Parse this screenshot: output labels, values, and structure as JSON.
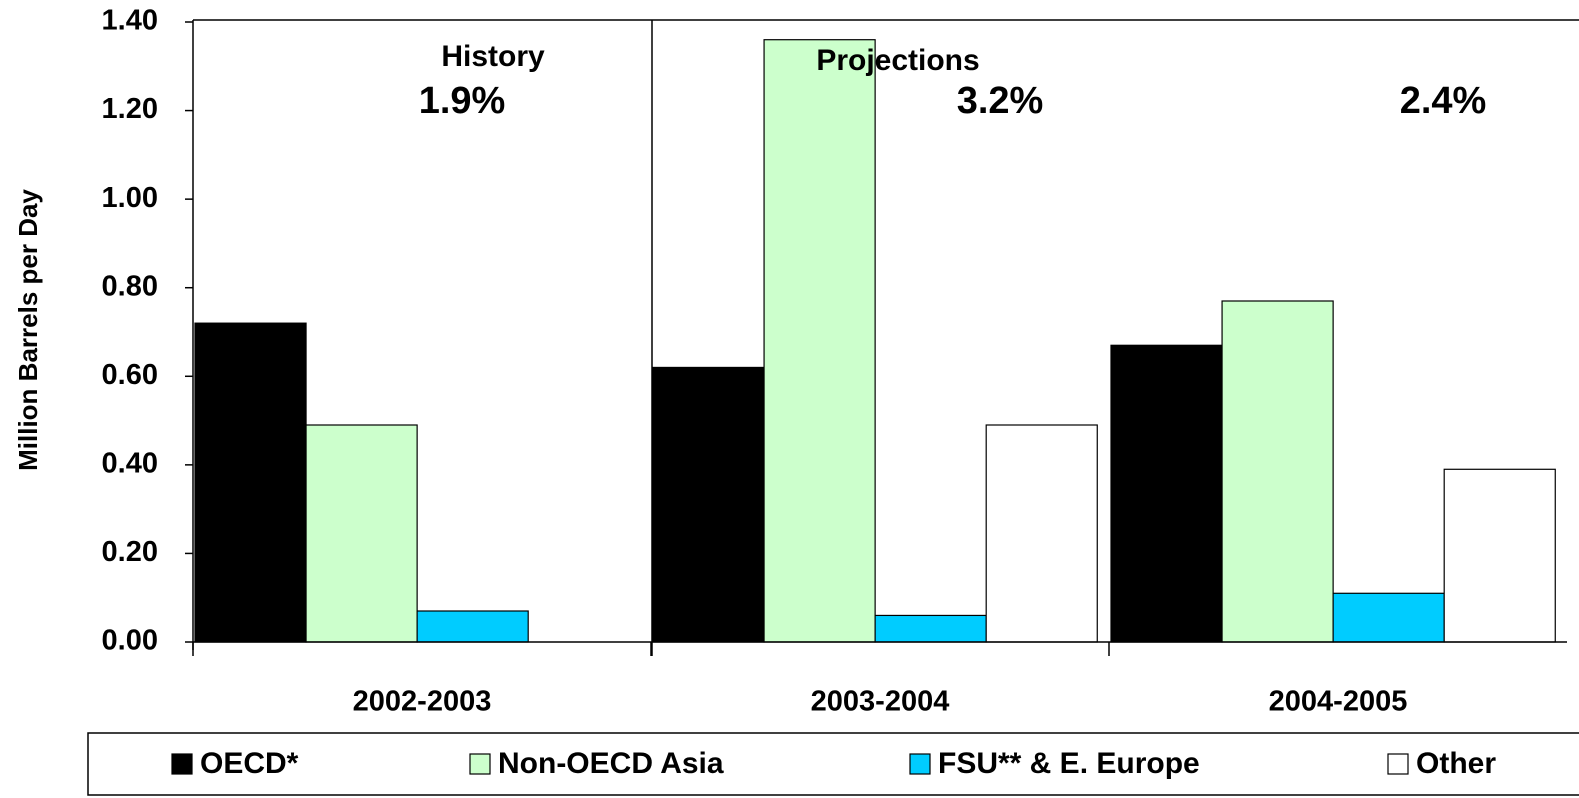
{
  "chart_data": {
    "type": "bar",
    "y_label": "Million Barrels per Day",
    "categories": [
      "2002-2003",
      "2003-2004",
      "2004-2005"
    ],
    "series": [
      {
        "name": "OECD*",
        "color": "#000000",
        "values": [
          0.72,
          0.62,
          0.67
        ]
      },
      {
        "name": "Non-OECD Asia",
        "color": "#ccffcc",
        "values": [
          0.49,
          1.36,
          0.77
        ]
      },
      {
        "name": "FSU** & E. Europe",
        "color": "#00ccff",
        "values": [
          0.07,
          0.06,
          0.11
        ]
      },
      {
        "name": "Other",
        "color": "#ffffff",
        "values": [
          null,
          0.49,
          0.39
        ]
      }
    ],
    "ylim": [
      0,
      1.4
    ],
    "yticks": [
      {
        "value": 0,
        "label": "0.00"
      },
      {
        "value": 0.2,
        "label": "0.20"
      },
      {
        "value": 0.4,
        "label": "0.40"
      },
      {
        "value": 0.6,
        "label": "0.60"
      },
      {
        "value": 0.8,
        "label": "0.80"
      },
      {
        "value": 1.0,
        "label": "1.00"
      },
      {
        "value": 1.2,
        "label": "1.20"
      },
      {
        "value": 1.4,
        "label": "1.40"
      }
    ],
    "annotations": [
      "History",
      "Projections",
      "1.9%",
      "3.2%",
      "2.4%"
    ],
    "legend": "bottom"
  }
}
